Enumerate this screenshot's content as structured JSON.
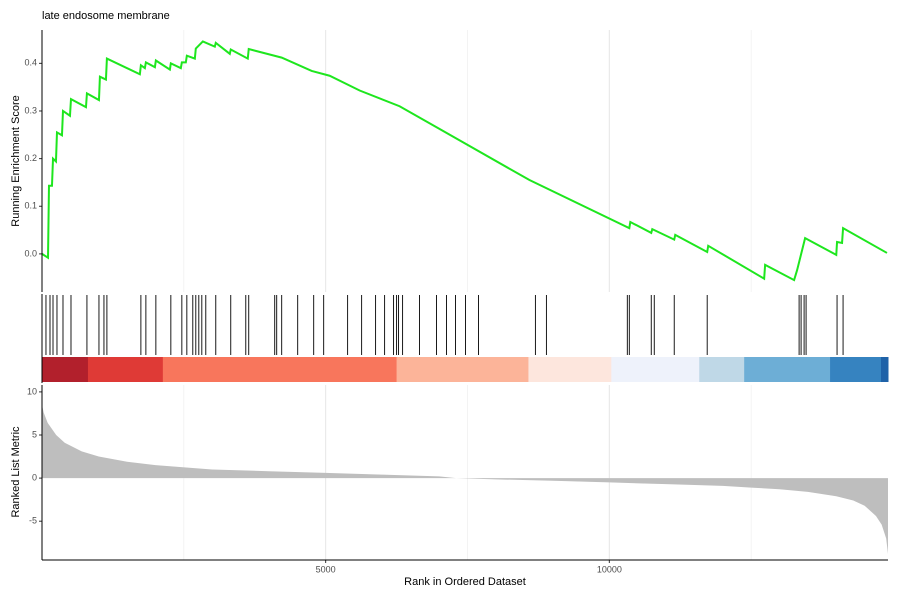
{
  "chart_data": [
    {
      "type": "line",
      "title": "late endosome membrane",
      "ylabel": "Running Enrichment Score",
      "color": "#1ee61e",
      "x": [
        0,
        106,
        123,
        176,
        194,
        246,
        264,
        352,
        370,
        493,
        511,
        775,
        792,
        1004,
        1021,
        1127,
        1144,
        1725,
        1743,
        1813,
        1831,
        1990,
        2007,
        2254,
        2271,
        2447,
        2465,
        2535,
        2553,
        2694,
        2711,
        2835,
        3046,
        3063,
        3310,
        3327,
        3627,
        3644,
        4225,
        4754,
        5070,
        5599,
        6303,
        8592,
        10352,
        10370,
        10739,
        10757,
        11144,
        11162,
        11725,
        11743,
        12729,
        12746,
        13257,
        13310,
        13451,
        14000,
        14014,
        14102,
        14120,
        14894
      ],
      "values": [
        0,
        -0.008,
        0.143,
        0.143,
        0.2,
        0.194,
        0.255,
        0.249,
        0.3,
        0.29,
        0.325,
        0.308,
        0.337,
        0.323,
        0.372,
        0.366,
        0.41,
        0.377,
        0.396,
        0.39,
        0.402,
        0.392,
        0.406,
        0.387,
        0.4,
        0.39,
        0.402,
        0.402,
        0.416,
        0.41,
        0.431,
        0.446,
        0.435,
        0.443,
        0.42,
        0.429,
        0.41,
        0.43,
        0.412,
        0.384,
        0.374,
        0.343,
        0.31,
        0.155,
        0.054,
        0.067,
        0.044,
        0.052,
        0.03,
        0.04,
        0.004,
        0.017,
        -0.052,
        -0.023,
        -0.055,
        -0.034,
        0.033,
        -0.002,
        0.025,
        0.023,
        0.054,
        0.002
      ],
      "xlim": [
        0,
        14912
      ],
      "ylim": [
        -0.08,
        0.47
      ],
      "yticks": [
        {
          "value": 0,
          "label": "0.0"
        },
        0.1,
        0.2,
        0.3,
        0.4
      ],
      "xticks": [
        5000,
        10000
      ],
      "xticks_minor": [
        2500,
        7500,
        12500
      ]
    },
    {
      "type": "rug",
      "color": "#000000",
      "x": [
        70,
        141,
        194,
        264,
        370,
        511,
        792,
        1004,
        1092,
        1144,
        1743,
        1831,
        2007,
        2271,
        2465,
        2553,
        2658,
        2711,
        2764,
        2817,
        2887,
        3063,
        3327,
        3592,
        3644,
        4102,
        4137,
        4225,
        4507,
        4789,
        4965,
        5387,
        5634,
        5880,
        6039,
        6197,
        6250,
        6285,
        6356,
        6655,
        6954,
        7130,
        7289,
        7465,
        7694,
        8697,
        8891,
        10317,
        10352,
        10739,
        10792,
        11144,
        11725,
        13345,
        13380,
        13433,
        13468,
        14014,
        14120
      ],
      "bands": [
        {
          "start": 0,
          "end": 810,
          "color": "#b2202c"
        },
        {
          "start": 810,
          "end": 2130,
          "color": "#df3a36"
        },
        {
          "start": 2130,
          "end": 6250,
          "color": "#f8765c"
        },
        {
          "start": 6250,
          "end": 8574,
          "color": "#fcb499"
        },
        {
          "start": 8574,
          "end": 10035,
          "color": "#fde6dd"
        },
        {
          "start": 10035,
          "end": 11585,
          "color": "#eef2fb"
        },
        {
          "start": 11585,
          "end": 12377,
          "color": "#bfd8e7"
        },
        {
          "start": 12377,
          "end": 13891,
          "color": "#6daed6"
        },
        {
          "start": 13891,
          "end": 14789,
          "color": "#3683c0"
        },
        {
          "start": 14789,
          "end": 14912,
          "color": "#1f62a8"
        }
      ]
    },
    {
      "type": "area",
      "ylabel": "Ranked List Metric",
      "xlabel": "Rank in Ordered Dataset",
      "color": "#bebebe",
      "x": [
        0,
        30,
        100,
        250,
        400,
        700,
        1000,
        1500,
        2000,
        3000,
        4000,
        5000,
        6000,
        7000,
        7300,
        8000,
        9000,
        10000,
        11000,
        12000,
        12500,
        13000,
        13500,
        14000,
        14300,
        14500,
        14700,
        14800,
        14880,
        14912
      ],
      "values": [
        8.5,
        7.6,
        6.4,
        5,
        4.1,
        3.1,
        2.5,
        1.9,
        1.5,
        1.0,
        0.8,
        0.6,
        0.4,
        0.2,
        0,
        -0.15,
        -0.3,
        -0.5,
        -0.7,
        -0.9,
        -1.1,
        -1.3,
        -1.6,
        -2.1,
        -2.6,
        -3.2,
        -4.4,
        -5.4,
        -7,
        -8.8
      ],
      "xlim": [
        0,
        14912
      ],
      "ylim": [
        -9.5,
        10.8
      ],
      "yticks": [
        -5,
        0,
        5,
        10
      ],
      "xticks": [
        5000,
        10000
      ],
      "xticks_minor": [
        2500,
        7500,
        12500
      ]
    }
  ]
}
